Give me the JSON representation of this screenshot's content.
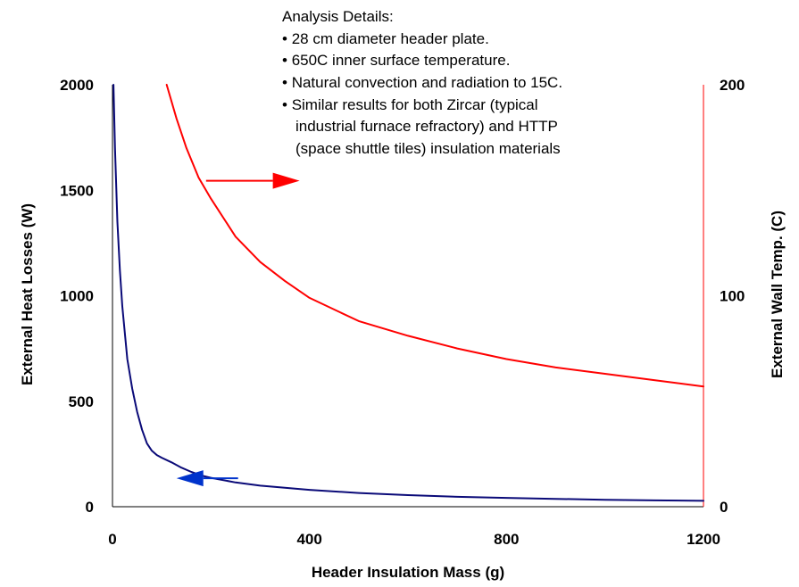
{
  "chart_data": {
    "type": "line",
    "title": "",
    "xlabel": "Header Insulation Mass (g)",
    "ylabel": "External Heat Losses (W)",
    "y2label": "External Wall Temp. (C)",
    "xlim": [
      0,
      1200
    ],
    "ylim": [
      0,
      2000
    ],
    "y2lim": [
      0,
      200
    ],
    "x_ticks": [
      "0",
      "400",
      "800",
      "1200"
    ],
    "y_ticks": [
      "0",
      "500",
      "1000",
      "1500",
      "2000"
    ],
    "y2_ticks": [
      "0",
      "100",
      "200"
    ],
    "grid": false,
    "legend": "none",
    "annotation": {
      "heading": "Analysis Details:",
      "bullets": [
        "28 cm diameter header plate.",
        "650C inner surface temperature.",
        "Natural convection and radiation to 15C.",
        "Similar results for both Zircar (typical",
        "industrial furnace refractory) and HTTP",
        "(space shuttle tiles) insulation materials"
      ]
    },
    "series": [
      {
        "axis": "left",
        "color": "#0a0a78",
        "x": [
          2,
          5,
          10,
          15,
          20,
          30,
          40,
          50,
          60,
          70,
          80,
          90,
          100,
          120,
          140,
          160,
          180,
          200,
          250,
          300,
          400,
          500,
          600,
          700,
          800,
          900,
          1000,
          1100,
          1200
        ],
        "y": [
          2000,
          1700,
          1350,
          1120,
          950,
          700,
          560,
          450,
          365,
          300,
          265,
          245,
          232,
          210,
          185,
          165,
          148,
          137,
          115,
          100,
          80,
          65,
          55,
          47,
          42,
          37,
          33,
          30,
          28
        ]
      },
      {
        "axis": "right",
        "color": "#ff0000",
        "x": [
          110,
          130,
          150,
          175,
          200,
          250,
          300,
          350,
          400,
          500,
          600,
          700,
          800,
          900,
          1000,
          1100,
          1200
        ],
        "y": [
          200,
          184,
          170,
          156,
          146,
          128,
          116,
          107,
          99,
          88,
          81,
          75,
          70,
          66,
          63,
          60,
          57
        ]
      }
    ],
    "arrows": [
      {
        "direction": "right",
        "axis": "left",
        "x_from": 190,
        "x_to": 380,
        "y": 1545,
        "color": "#ff0000"
      },
      {
        "direction": "left",
        "axis": "left",
        "x_from": 255,
        "x_to": 130,
        "y": 135,
        "color": "#0033cc"
      }
    ]
  }
}
